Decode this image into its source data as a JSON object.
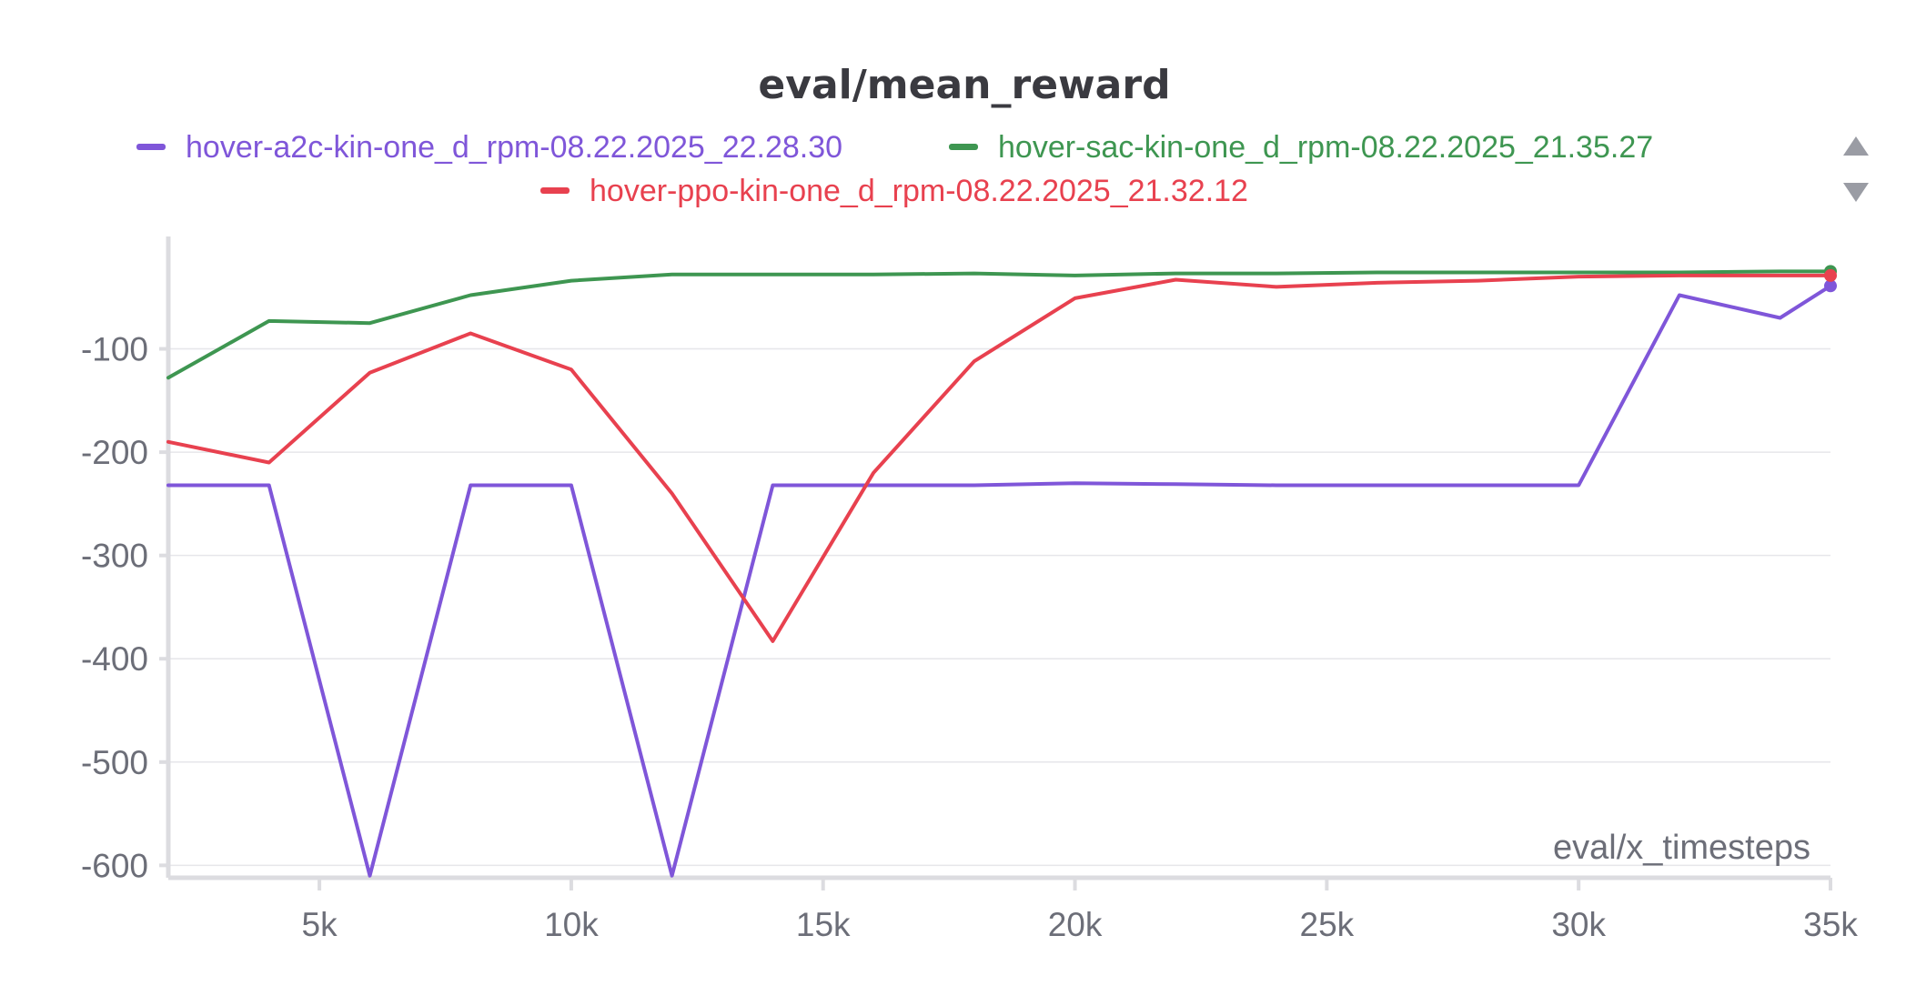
{
  "chart_data": {
    "type": "line",
    "title": "eval/mean_reward",
    "xlabel": "eval/x_timesteps",
    "ylabel": "",
    "xlim": [
      2000,
      35000
    ],
    "ylim": [
      -612,
      22
    ],
    "x_ticks": [
      5000,
      10000,
      15000,
      20000,
      25000,
      30000,
      35000
    ],
    "x_tick_labels": [
      "5k",
      "10k",
      "15k",
      "20k",
      "25k",
      "30k",
      "35k"
    ],
    "y_ticks": [
      -100,
      -200,
      -300,
      -400,
      -500,
      -600
    ],
    "y_tick_labels": [
      "-100",
      "-200",
      "-300",
      "-400",
      "-500",
      "-600"
    ],
    "grid": true,
    "legend_position": "top",
    "x": [
      2000,
      4000,
      6000,
      8000,
      10000,
      12000,
      14000,
      16000,
      18000,
      20000,
      22000,
      24000,
      26000,
      28000,
      30000,
      32000,
      34000,
      35000
    ],
    "series": [
      {
        "name": "hover-a2c-kin-one_d_rpm-08.22.2025_22.28.30",
        "color": "#7f56d9",
        "values": [
          -232,
          -232,
          -610,
          -232,
          -232,
          -610,
          -232,
          -232,
          -232,
          -230,
          -231,
          -232,
          -232,
          -232,
          -232,
          -48,
          -70,
          -39
        ]
      },
      {
        "name": "hover-sac-kin-one_d_rpm-08.22.2025_21.35.27",
        "color": "#3e9651",
        "values": [
          -128,
          -73,
          -75,
          -48,
          -34,
          -28,
          -28,
          -28,
          -27,
          -29,
          -27,
          -27,
          -26,
          -26,
          -26,
          -26,
          -25,
          -25
        ]
      },
      {
        "name": "hover-ppo-kin-one_d_rpm-08.22.2025_21.32.12",
        "color": "#e8414f",
        "values": [
          -190,
          -210,
          -123,
          -85,
          -120,
          -240,
          -383,
          -220,
          -112,
          -51,
          -33,
          -40,
          -36,
          -34,
          -30,
          -29,
          -29,
          -29
        ]
      }
    ]
  },
  "legend_controls": {
    "up_icon": "triangle-up-icon",
    "down_icon": "triangle-down-icon"
  }
}
